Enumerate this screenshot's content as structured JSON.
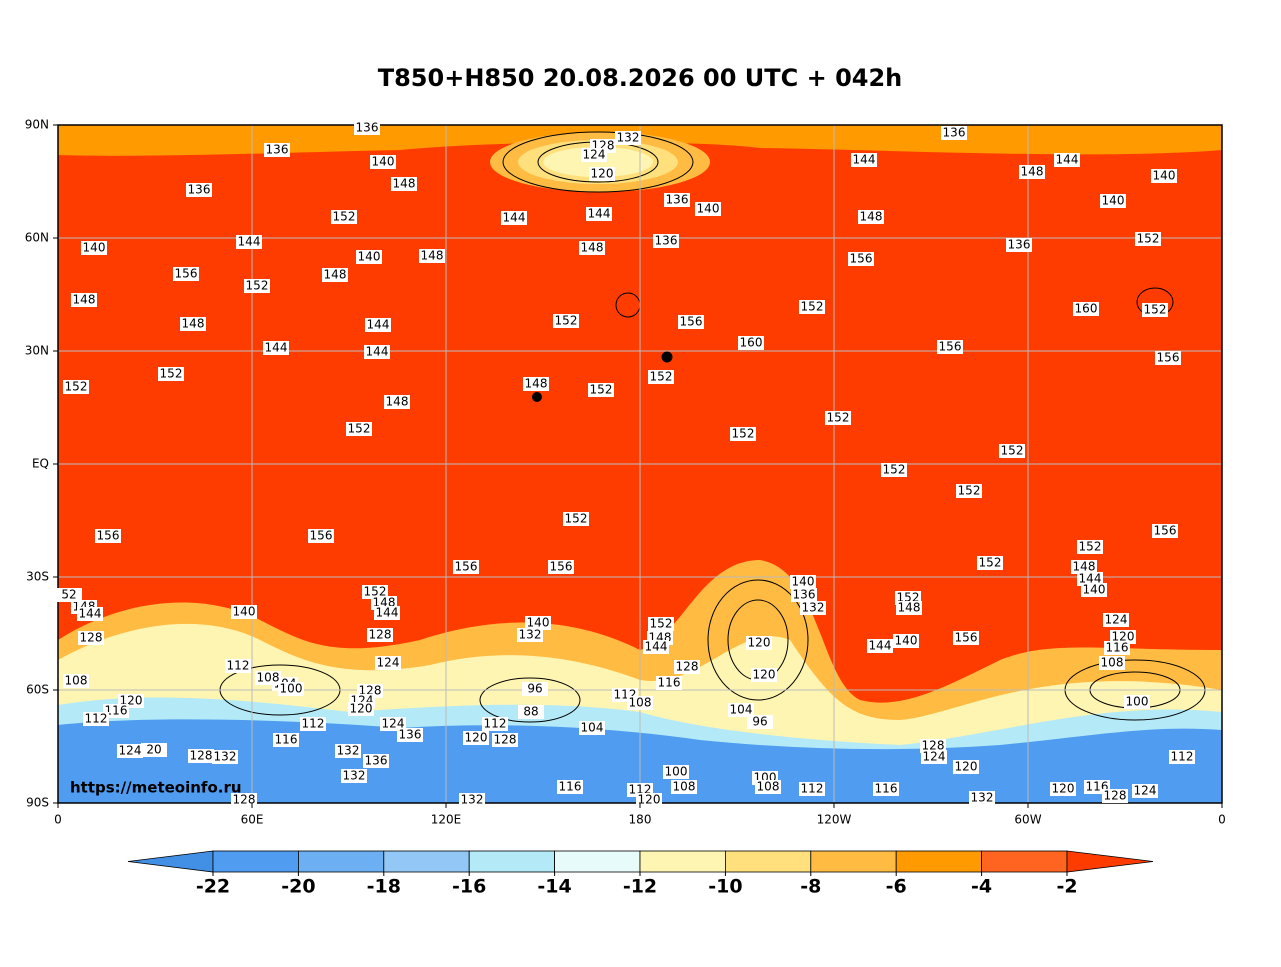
{
  "title": "T850+H850 20.08.2026 00 UTC + 042h",
  "map": {
    "lat_labels": [
      "90N",
      "60N",
      "30N",
      "EQ",
      "30S",
      "60S",
      "90S"
    ],
    "lon_labels": [
      "0",
      "60E",
      "120E",
      "180",
      "120W",
      "60W",
      "0"
    ],
    "watermark": "https://meteoinfo.ru",
    "contour_labels": [
      136,
      136,
      140,
      148,
      136,
      152,
      144,
      156,
      152,
      148,
      140,
      148,
      148,
      144,
      144,
      144,
      148,
      152,
      152,
      152,
      156,
      156,
      156,
      156,
      152,
      152,
      148,
      152,
      152,
      156,
      160,
      152,
      152,
      152,
      152,
      152,
      152,
      156,
      160,
      152,
      156,
      156,
      156,
      148,
      144,
      136,
      144,
      148,
      140,
      140,
      152,
      136,
      128,
      132,
      124,
      120,
      144,
      144,
      136,
      140,
      136,
      148,
      140,
      136,
      132,
      120,
      120,
      152,
      148,
      144,
      140,
      156,
      152,
      152,
      148,
      144,
      140,
      124,
      120,
      116,
      108,
      100,
      112,
      104,
      96,
      100,
      108,
      100,
      108,
      112,
      116,
      128,
      124,
      120,
      132,
      120,
      116,
      128,
      124,
      152,
      148,
      144,
      128,
      116,
      112,
      108,
      96,
      88,
      104,
      112,
      120,
      128,
      140,
      132,
      152,
      148,
      144,
      128,
      124,
      128,
      124,
      120,
      124,
      136,
      112,
      116,
      104,
      108,
      100,
      112,
      140,
      128,
      148,
      144,
      52,
      108,
      120,
      116,
      112,
      124,
      20,
      128,
      132,
      132,
      136,
      132,
      116,
      132,
      128,
      112,
      120,
      140,
      148
    ]
  },
  "colorbar": {
    "ticks": [
      -22,
      -20,
      -18,
      -16,
      -14,
      -12,
      -10,
      -8,
      -6,
      -4,
      -2
    ],
    "colors": [
      "#4190e6",
      "#4f9cf0",
      "#6caff2",
      "#93c7f6",
      "#b4e9f7",
      "#e8fbfb",
      "#fff5b2",
      "#ffe07c",
      "#ffbb42",
      "#ff9a00",
      "#ff6420",
      "#ff3c00"
    ]
  }
}
